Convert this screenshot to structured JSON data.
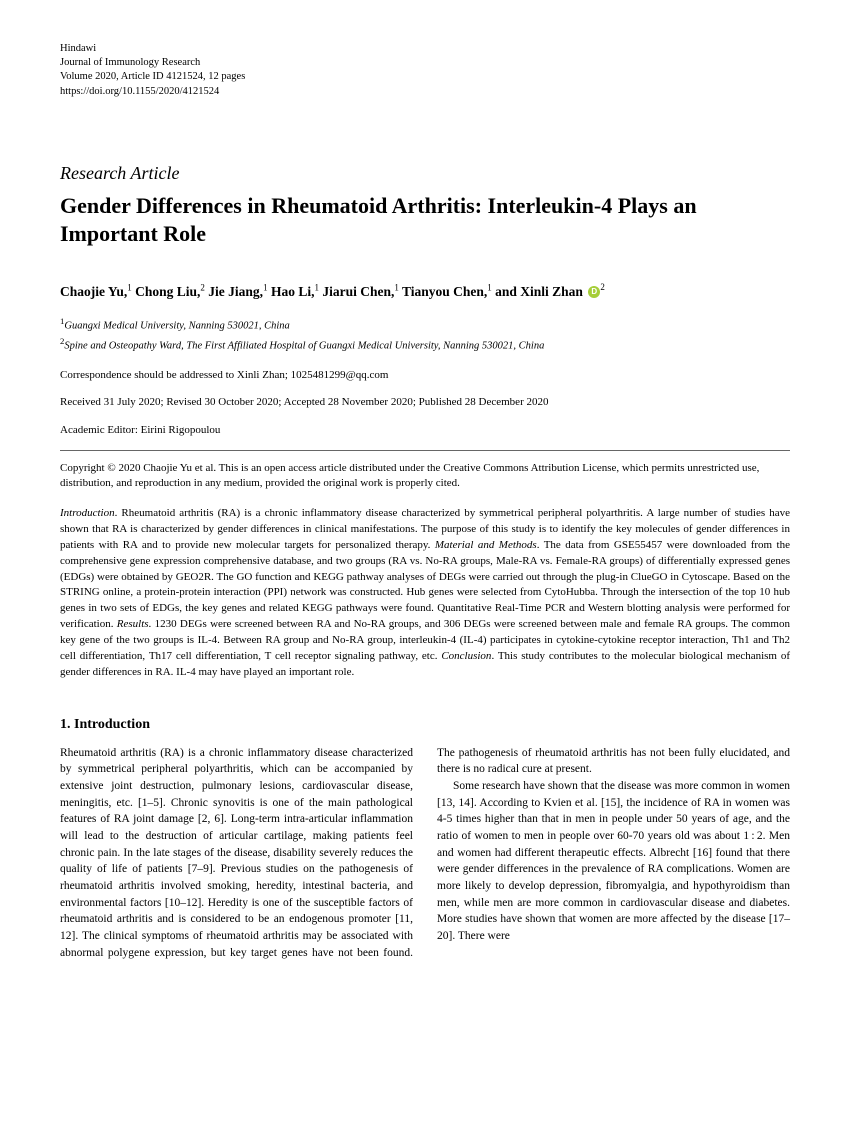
{
  "header": {
    "publisher": "Hindawi",
    "journal": "Journal of Immunology Research",
    "volume_line": "Volume 2020, Article ID 4121524, 12 pages",
    "doi": "https://doi.org/10.1155/2020/4121524"
  },
  "article_type": "Research Article",
  "title": "Gender Differences in Rheumatoid Arthritis: Interleukin-4 Plays an Important Role",
  "authors_html": "Chaojie Yu,<sup>1</sup> Chong Liu,<sup>2</sup> Jie Jiang,<sup>1</sup> Hao Li,<sup>1</sup> Jiarui Chen,<sup>1</sup> Tianyou Chen,<sup>1</sup> and Xinli Zhan",
  "author_last_sup": "2",
  "affiliations": {
    "a1": "Guangxi Medical University, Nanning 530021, China",
    "a2": "Spine and Osteopathy Ward, The First Affiliated Hospital of Guangxi Medical University, Nanning 530021, China"
  },
  "correspondence": "Correspondence should be addressed to Xinli Zhan; 1025481299@qq.com",
  "dates": "Received 31 July 2020; Revised 30 October 2020; Accepted 28 November 2020; Published 28 December 2020",
  "editor": "Academic Editor: Eirini Rigopoulou",
  "copyright": "Copyright © 2020 Chaojie Yu et al. This is an open access article distributed under the Creative Commons Attribution License, which permits unrestricted use, distribution, and reproduction in any medium, provided the original work is properly cited.",
  "abstract": {
    "h_intro": "Introduction",
    "t_intro": ". Rheumatoid arthritis (RA) is a chronic inflammatory disease characterized by symmetrical peripheral polyarthritis. A large number of studies have shown that RA is characterized by gender differences in clinical manifestations. The purpose of this study is to identify the key molecules of gender differences in patients with RA and to provide new molecular targets for personalized therapy. ",
    "h_methods": "Material and Methods",
    "t_methods": ". The data from GSE55457 were downloaded from the comprehensive gene expression comprehensive database, and two groups (RA vs. No-RA groups, Male-RA vs. Female-RA groups) of differentially expressed genes (EDGs) were obtained by GEO2R. The GO function and KEGG pathway analyses of DEGs were carried out through the plug-in ClueGO in Cytoscape. Based on the STRING online, a protein-protein interaction (PPI) network was constructed. Hub genes were selected from CytoHubba. Through the intersection of the top 10 hub genes in two sets of EDGs, the key genes and related KEGG pathways were found. Quantitative Real-Time PCR and Western blotting analysis were performed for verification. ",
    "h_results": "Results",
    "t_results": ". 1230 DEGs were screened between RA and No-RA groups, and 306 DEGs were screened between male and female RA groups. The common key gene of the two groups is IL-4. Between RA group and No-RA group, interleukin-4 (IL-4) participates in cytokine-cytokine receptor interaction, Th1 and Th2 cell differentiation, Th17 cell differentiation, T cell receptor signaling pathway, etc. ",
    "h_conclusion": "Conclusion",
    "t_conclusion": ". This study contributes to the molecular biological mechanism of gender differences in RA. IL-4 may have played an important role."
  },
  "section1_title": "1. Introduction",
  "body": {
    "p1": "Rheumatoid arthritis (RA) is a chronic inflammatory disease characterized by symmetrical peripheral polyarthritis, which can be accompanied by extensive joint destruction, pulmonary lesions, cardiovascular disease, meningitis, etc. [1–5]. Chronic synovitis is one of the main pathological features of RA joint damage [2, 6]. Long-term intra-articular inflammation will lead to the destruction of articular cartilage, making patients feel chronic pain. In the late stages of the disease, disability severely reduces the quality of life of patients [7–9]. Previous studies on the pathogenesis of rheumatoid arthritis involved smoking, heredity, intestinal bacteria, and environmental factors [10–12]. Heredity is one of the susceptible factors of rheumatoid arthritis and is considered to be an endogenous promoter [11, 12]. The clinical symptoms of rheumatoid arthritis may be associated with abnormal polygene expression, but key target genes have not been found. The pathogenesis of rheumatoid arthritis has not been fully elucidated, and there is no radical cure at present.",
    "p2": "Some research have shown that the disease was more common in women [13, 14]. According to Kvien et al. [15], the incidence of RA in women was 4-5 times higher than that in men in people under 50 years of age, and the ratio of women to men in people over 60-70 years old was about 1 : 2. Men and women had different therapeutic effects. Albrecht [16] found that there were gender differences in the prevalence of RA complications. Women are more likely to develop depression, fibromyalgia, and hypothyroidism than men, while men are more common in cardiovascular disease and diabetes. More studies have shown that women are more affected by the disease [17–20]. There were"
  },
  "colors": {
    "text": "#000000",
    "background": "#ffffff",
    "orcid": "#a6ce39"
  }
}
